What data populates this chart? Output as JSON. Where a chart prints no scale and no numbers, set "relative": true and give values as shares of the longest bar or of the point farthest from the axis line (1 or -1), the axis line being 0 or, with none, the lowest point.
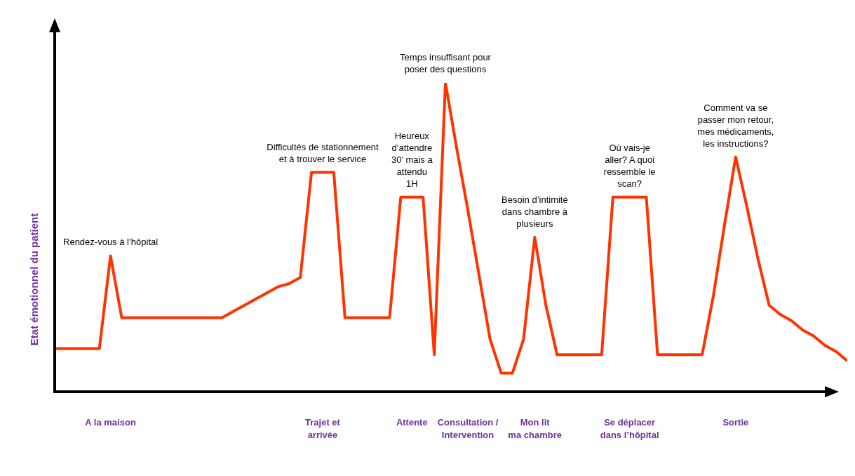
{
  "chart_data": {
    "type": "line",
    "relative": true,
    "ylabel": "Etat émotionnel du patient",
    "categories": [
      null,
      null,
      null,
      null,
      null,
      null,
      null,
      null,
      null,
      null,
      null,
      null,
      null,
      null,
      null,
      null,
      null,
      null,
      null,
      null,
      null,
      null,
      null,
      null,
      null,
      null,
      null,
      null,
      null,
      null,
      null,
      null,
      null,
      null,
      null,
      null,
      null,
      null,
      null,
      null,
      null,
      null,
      null,
      null,
      null,
      null,
      null,
      null,
      null,
      null,
      null,
      null,
      null,
      null,
      null,
      null,
      null,
      null,
      null,
      null,
      null,
      null,
      null,
      null,
      null,
      null,
      null,
      null,
      null,
      null,
      null,
      null
    ],
    "series": [
      {
        "color": "#ff3300",
        "values": [
          0.14,
          0.14,
          0.14,
          0.14,
          0.14,
          0.44,
          0.24,
          0.24,
          0.24,
          0.24,
          0.24,
          0.24,
          0.24,
          0.24,
          0.24,
          0.24,
          0.26,
          0.28,
          0.3,
          0.32,
          0.34,
          0.35,
          0.37,
          0.71,
          0.71,
          0.71,
          0.24,
          0.24,
          0.24,
          0.24,
          0.24,
          0.63,
          0.63,
          0.63,
          0.12,
          1,
          0.79,
          0.59,
          0.38,
          0.17,
          0.06,
          0.06,
          0.17,
          0.5,
          0.28,
          0.12,
          0.12,
          0.12,
          0.12,
          0.12,
          0.63,
          0.63,
          0.63,
          0.63,
          0.12,
          0.12,
          0.12,
          0.12,
          0.12,
          0.31,
          0.54,
          0.76,
          0.6,
          0.43,
          0.28,
          0.25,
          0.23,
          0.2,
          0.18,
          0.15,
          0.13,
          0.1
        ]
      }
    ],
    "marker": "none",
    "line_style": "solid",
    "legend": false,
    "annotations": [
      "Rendez-vous à l’hôpital",
      "Difficultés de stationnement\net à trouver le service",
      "Heureux\nd’attendre\n30’ mais a\nattendu\n1H",
      "Temps insuffisant pour\nposer des questions",
      "Besoin d’intimité\ndans chambre à\nplusieurs",
      "Où vais-je\naller? A quoi\nressemble le\nscan?",
      "Comment va se\npasser mon retour,\nmes médicaments,\nles instructions?",
      "A la maison",
      "Trajet et\narrivée",
      "Attente",
      "Consultation /\nIntervention",
      "Mon lit\nma chambre",
      "Se déplacer\ndans l’hôpital",
      "Sortie"
    ]
  }
}
